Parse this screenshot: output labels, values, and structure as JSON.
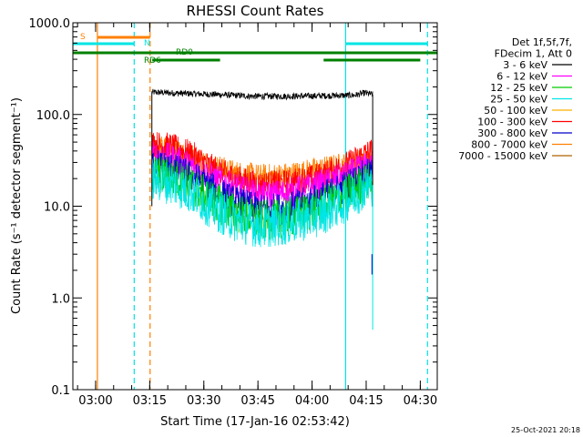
{
  "chart_data": {
    "type": "line",
    "title": "RHESSI Count Rates",
    "xlabel": "Start Time (17-Jan-16 02:53:42)",
    "ylabel": "Count Rate (s⁻¹ detector segment⁻¹)",
    "yscale": "log",
    "ylim": [
      0.1,
      1000
    ],
    "xlim_minutes": [
      0,
      101
    ],
    "x_ticks": [
      {
        "label": "03:00",
        "t": 6.3
      },
      {
        "label": "03:15",
        "t": 21.3
      },
      {
        "label": "03:30",
        "t": 36.3
      },
      {
        "label": "03:45",
        "t": 51.3
      },
      {
        "label": "04:00",
        "t": 66.3
      },
      {
        "label": "04:15",
        "t": 81.3
      },
      {
        "label": "04:30",
        "t": 96.3
      }
    ],
    "y_ticks": [
      {
        "label": "0.1",
        "v": 0.1
      },
      {
        "label": "1.0",
        "v": 1
      },
      {
        "label": "10.0",
        "v": 10
      },
      {
        "label": "100.0",
        "v": 100
      },
      {
        "label": "1000.0",
        "v": 1000
      }
    ],
    "legend": {
      "placement": "right",
      "header": [
        "Det 1f,5f,7f,",
        "FDecim 1, Att 0"
      ],
      "entries": [
        {
          "label": "3 - 6 keV",
          "color": "#000000"
        },
        {
          "label": "6 - 12 keV",
          "color": "#ff00ff"
        },
        {
          "label": "12 - 25 keV",
          "color": "#00cc00"
        },
        {
          "label": "25 - 50 keV",
          "color": "#00e5e5"
        },
        {
          "label": "50 - 100 keV",
          "color": "#ffb000"
        },
        {
          "label": "100 - 300 keV",
          "color": "#ff0000"
        },
        {
          "label": "300 - 800 keV",
          "color": "#0000cc"
        },
        {
          "label": "800 - 7000 keV",
          "color": "#ff8000"
        },
        {
          "label": "7000 - 15000 keV",
          "color": "#b06000"
        }
      ]
    },
    "series": [
      {
        "name": "3 - 6 keV",
        "color": "#000000",
        "t_start": 21.9,
        "t_end": 83.1,
        "profile": [
          [
            21.9,
            175
          ],
          [
            30,
            170
          ],
          [
            40,
            165
          ],
          [
            50,
            158
          ],
          [
            60,
            158
          ],
          [
            70,
            160
          ],
          [
            78,
            162
          ],
          [
            81,
            172
          ],
          [
            83.1,
            165
          ]
        ],
        "noise": 0.035
      },
      {
        "name": "800 - 7000 keV",
        "color": "#ff8000",
        "t_start": 21.9,
        "t_end": 83.1,
        "profile": [
          [
            21.9,
            45
          ],
          [
            27,
            42
          ],
          [
            33,
            35
          ],
          [
            38,
            28
          ],
          [
            45,
            23
          ],
          [
            52,
            21
          ],
          [
            60,
            22
          ],
          [
            68,
            25
          ],
          [
            75,
            28
          ],
          [
            81,
            32
          ],
          [
            83.1,
            30
          ]
        ],
        "noise": 0.14
      },
      {
        "name": "100 - 300 keV",
        "color": "#ff0000",
        "t_start": 21.9,
        "t_end": 83.1,
        "profile": [
          [
            21.9,
            48
          ],
          [
            27,
            45
          ],
          [
            33,
            37
          ],
          [
            38,
            27
          ],
          [
            45,
            20
          ],
          [
            52,
            17
          ],
          [
            60,
            18
          ],
          [
            68,
            21
          ],
          [
            75,
            27
          ],
          [
            81,
            37
          ],
          [
            83.1,
            40
          ]
        ],
        "noise": 0.15
      },
      {
        "name": "6 - 12 keV",
        "color": "#ff00ff",
        "t_start": 21.9,
        "t_end": 83.1,
        "profile": [
          [
            21.9,
            36
          ],
          [
            27,
            34
          ],
          [
            33,
            27
          ],
          [
            38,
            21
          ],
          [
            45,
            16
          ],
          [
            52,
            13
          ],
          [
            60,
            14
          ],
          [
            68,
            17
          ],
          [
            75,
            21
          ],
          [
            81,
            27
          ],
          [
            83.1,
            26
          ]
        ],
        "noise": 0.16
      },
      {
        "name": "300 - 800 keV",
        "color": "#0000cc",
        "t_start": 21.9,
        "t_end": 83.1,
        "profile": [
          [
            21.9,
            29
          ],
          [
            27,
            26
          ],
          [
            33,
            21
          ],
          [
            38,
            16
          ],
          [
            45,
            11
          ],
          [
            52,
            9
          ],
          [
            60,
            9.5
          ],
          [
            68,
            12
          ],
          [
            75,
            16
          ],
          [
            81,
            22
          ],
          [
            83.1,
            22
          ]
        ],
        "noise": 0.18
      },
      {
        "name": "12 - 25 keV",
        "color": "#00cc00",
        "t_start": 21.9,
        "t_end": 83.1,
        "profile": [
          [
            21.9,
            23
          ],
          [
            27,
            21
          ],
          [
            33,
            17
          ],
          [
            38,
            12
          ],
          [
            45,
            8.5
          ],
          [
            52,
            7
          ],
          [
            60,
            7.5
          ],
          [
            68,
            9.5
          ],
          [
            75,
            13
          ],
          [
            81,
            18
          ],
          [
            83.1,
            19
          ]
        ],
        "noise": 0.22
      },
      {
        "name": "25 - 50 keV",
        "color": "#00e5e5",
        "t_start": 21.9,
        "t_end": 83.1,
        "profile": [
          [
            21.9,
            20
          ],
          [
            27,
            18
          ],
          [
            33,
            14
          ],
          [
            38,
            10
          ],
          [
            45,
            7
          ],
          [
            52,
            6
          ],
          [
            60,
            6.5
          ],
          [
            68,
            8
          ],
          [
            75,
            11
          ],
          [
            81,
            16
          ],
          [
            83.1,
            17
          ]
        ],
        "noise": 0.24
      }
    ],
    "vertical_lines": [
      {
        "t": 6.8,
        "color": "#ff8000",
        "style": "solid"
      },
      {
        "t": 17.0,
        "color": "#00e5e5",
        "style": "dashed"
      },
      {
        "t": 21.4,
        "color": "#ff8000",
        "style": "dashed"
      },
      {
        "t": 75.6,
        "color": "#00e5e5",
        "style": "solid"
      },
      {
        "t": 98.3,
        "color": "#00e5e5",
        "style": "dashed"
      }
    ],
    "drop_lines": [
      {
        "t": 21.9,
        "color": "#000000",
        "from": 175,
        "to": 10
      },
      {
        "t": 83.1,
        "color": "#000000",
        "from": 165,
        "to": 10
      },
      {
        "t": 83.1,
        "color": "#00e5e5",
        "from": 17,
        "to": 0.45
      },
      {
        "t": 82.9,
        "color": "#0000cc",
        "from": 3,
        "to": 1.8
      }
    ],
    "flag_bars": [
      {
        "label": "S",
        "color": "#ff8000",
        "level": 0,
        "segments": [
          [
            6.8,
            21.4
          ]
        ]
      },
      {
        "label": "N",
        "color": "#00e5e5",
        "level": 1,
        "segments": [
          [
            0,
            17.0
          ],
          [
            75.6,
            98.3
          ]
        ]
      },
      {
        "label": "RD0",
        "color": "#008000",
        "level": 2,
        "segments": [
          [
            0,
            98.3
          ],
          [
            98.3,
            101
          ]
        ]
      },
      {
        "label": "RD6",
        "color": "#008000",
        "level": 3,
        "segments": [
          [
            22.0,
            40.8
          ],
          [
            69.5,
            96.3
          ]
        ]
      }
    ]
  },
  "footer": {
    "timestamp": "25-Oct-2021 20:18"
  }
}
